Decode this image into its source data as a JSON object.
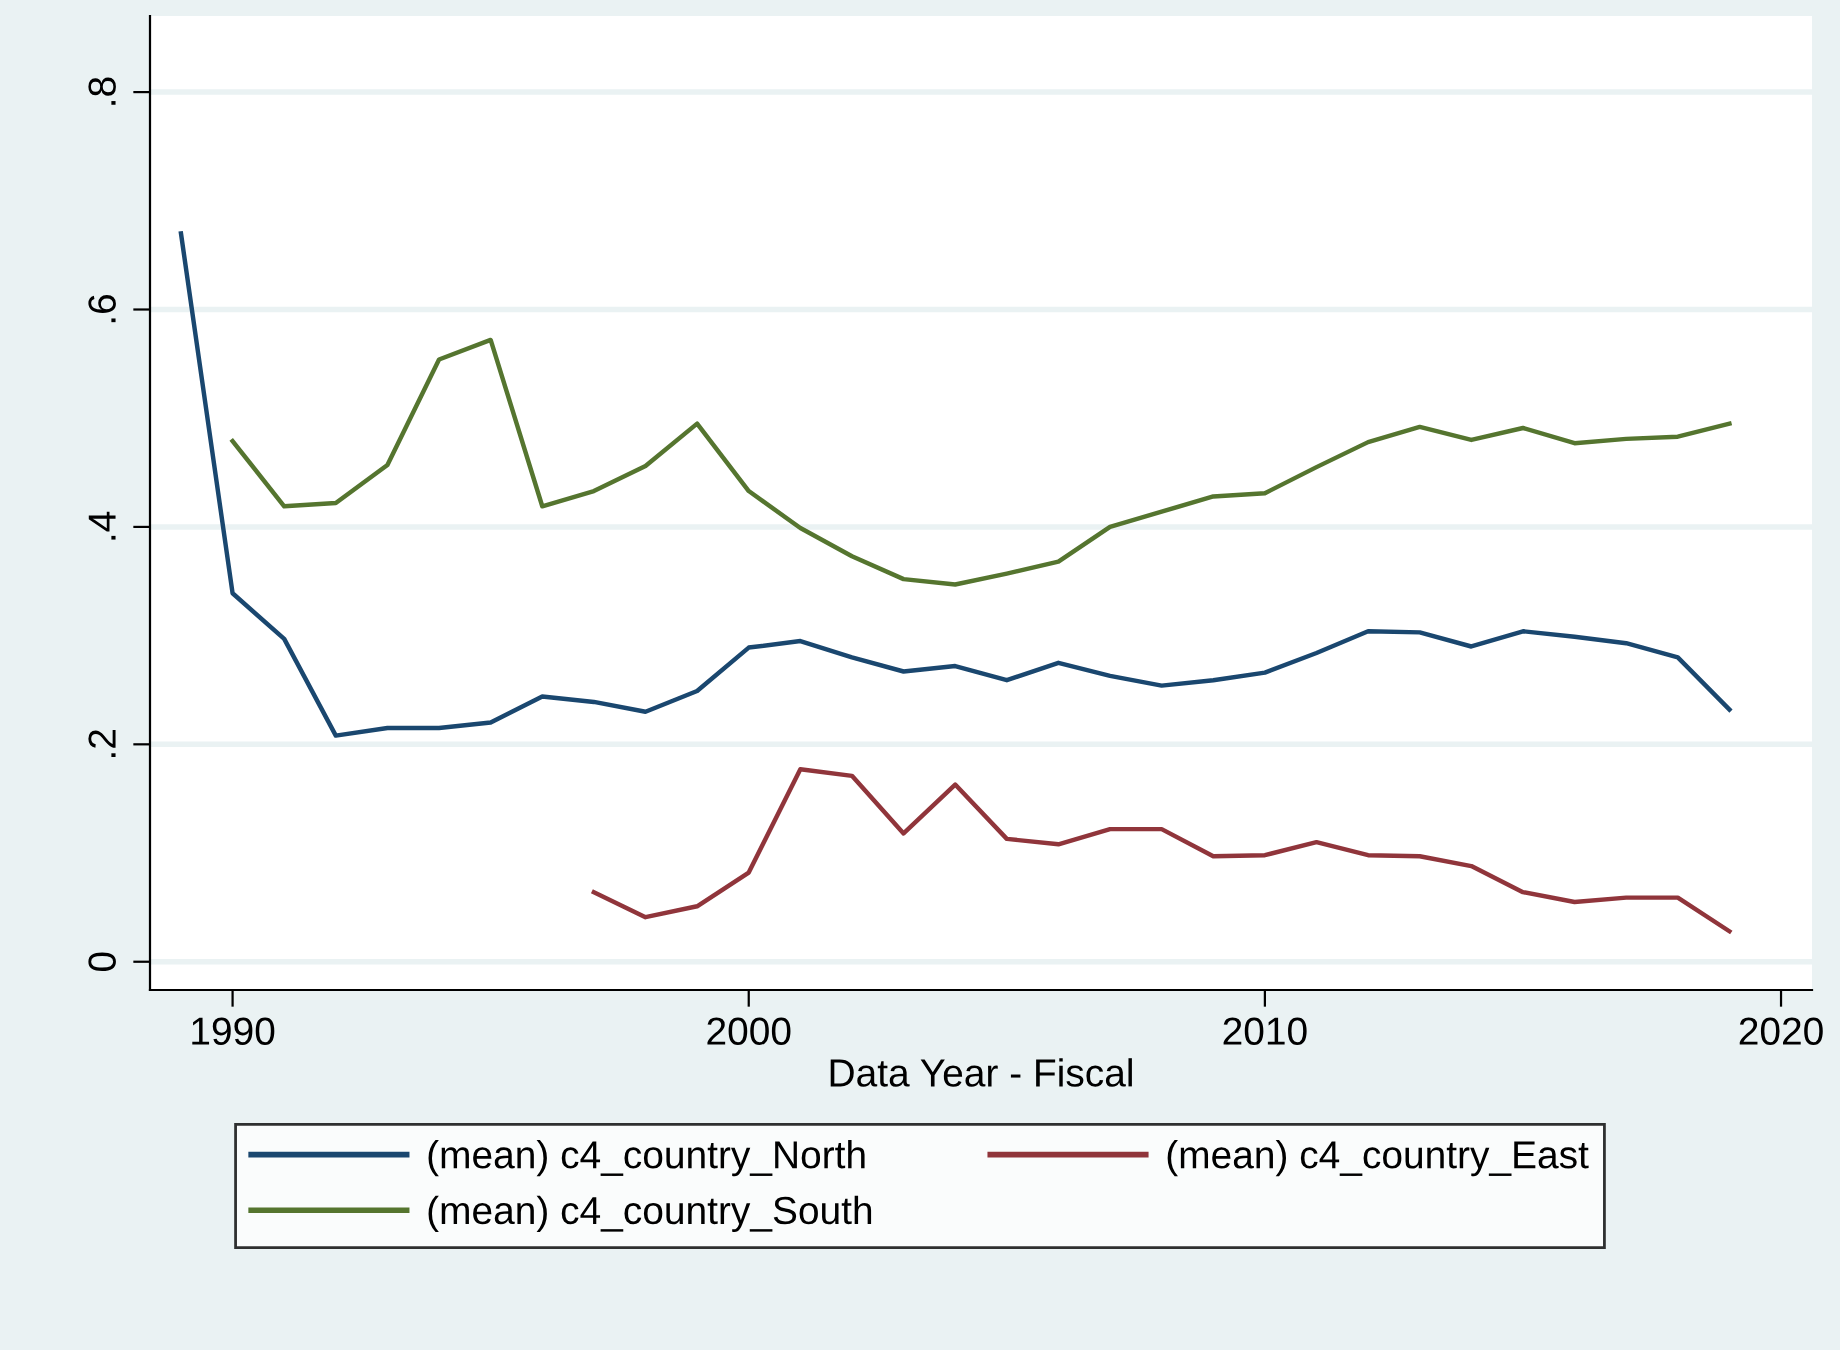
{
  "chart_data": {
    "type": "line",
    "xlabel": "Data Year - Fiscal",
    "xlim": [
      1988.4,
      2020.6
    ],
    "xticks": [
      1990,
      2000,
      2010,
      2020
    ],
    "ylim": [
      -0.026,
      0.87
    ],
    "yticks": [
      {
        "value": 0,
        "label": "0"
      },
      {
        "value": 0.2,
        "label": ".2"
      },
      {
        "value": 0.4,
        "label": ".4"
      },
      {
        "value": 0.6,
        "label": ".6"
      },
      {
        "value": 0.8,
        "label": ".8"
      }
    ],
    "grid": "y",
    "legend": "bottom",
    "marker": "none",
    "line_style": "solid",
    "series": [
      {
        "name": "(mean) c4_country_North",
        "color": "#1a476f",
        "x": [
          1989,
          1990,
          1991,
          1992,
          1993,
          1994,
          1995,
          1996,
          1997,
          1998,
          1999,
          2000,
          2001,
          2002,
          2003,
          2004,
          2005,
          2006,
          2007,
          2008,
          2009,
          2010,
          2011,
          2012,
          2013,
          2014,
          2015,
          2016,
          2017,
          2018,
          2019
        ],
        "values": [
          0.67,
          0.339,
          0.297,
          0.208,
          0.215,
          0.215,
          0.22,
          0.244,
          0.239,
          0.23,
          0.249,
          0.289,
          0.295,
          0.28,
          0.267,
          0.272,
          0.259,
          0.275,
          0.263,
          0.254,
          0.259,
          0.266,
          0.284,
          0.304,
          0.303,
          0.29,
          0.304,
          0.299,
          0.293,
          0.28,
          0.232
        ]
      },
      {
        "name": "(mean) c4_country_East",
        "color": "#90353b",
        "x": [
          1997,
          1998,
          1999,
          2000,
          2001,
          2002,
          2003,
          2004,
          2005,
          2006,
          2007,
          2008,
          2009,
          2010,
          2011,
          2012,
          2013,
          2014,
          2015,
          2016,
          2017,
          2018,
          2019
        ],
        "values": [
          0.064,
          0.041,
          0.051,
          0.082,
          0.177,
          0.171,
          0.118,
          0.163,
          0.113,
          0.108,
          0.122,
          0.122,
          0.097,
          0.098,
          0.11,
          0.098,
          0.097,
          0.088,
          0.064,
          0.055,
          0.059,
          0.059,
          0.028
        ]
      },
      {
        "name": "(mean) c4_country_South",
        "color": "#55752f",
        "x": [
          1990,
          1991,
          1992,
          1993,
          1994,
          1995,
          1996,
          1997,
          1998,
          1999,
          2000,
          2001,
          2002,
          2003,
          2004,
          2005,
          2006,
          2007,
          2008,
          2009,
          2010,
          2011,
          2012,
          2013,
          2014,
          2015,
          2016,
          2017,
          2018,
          2019
        ],
        "values": [
          0.479,
          0.419,
          0.422,
          0.457,
          0.554,
          0.572,
          0.419,
          0.433,
          0.456,
          0.495,
          0.433,
          0.399,
          0.373,
          0.352,
          0.347,
          0.357,
          0.368,
          0.4,
          0.414,
          0.428,
          0.431,
          0.455,
          0.478,
          0.492,
          0.48,
          0.491,
          0.477,
          0.481,
          0.483,
          0.495
        ]
      }
    ]
  }
}
